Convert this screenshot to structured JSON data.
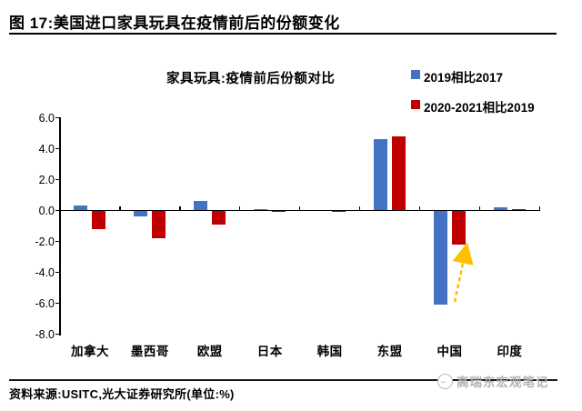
{
  "header": {
    "title": "图 17:美国进口家具玩具在疫情前后的份额变化"
  },
  "chart": {
    "title": "家具玩具:疫情前后份额对比"
  },
  "chart_data": {
    "type": "bar",
    "title": "家具玩具:疫情前后份额对比",
    "categories": [
      "加拿大",
      "墨西哥",
      "欧盟",
      "日本",
      "韩国",
      "东盟",
      "中国",
      "印度"
    ],
    "series": [
      {
        "name": "2019相比2017",
        "color": "#4472C4",
        "values": [
          0.3,
          -0.4,
          0.6,
          0.1,
          0.0,
          4.6,
          -6.1,
          0.2
        ]
      },
      {
        "name": "2020-2021相比2019",
        "color": "#C00000",
        "values": [
          -1.2,
          -1.8,
          -0.9,
          -0.1,
          -0.1,
          4.8,
          -2.2,
          0.1
        ]
      }
    ],
    "ylim": [
      -8.0,
      6.0
    ],
    "yticks": [
      "6.0",
      "4.0",
      "2.0",
      "0.0",
      "-2.0",
      "-4.0",
      "-6.0",
      "-8.0"
    ],
    "unit": "%",
    "grid": false,
    "legend_position": "top-right",
    "annotation": {
      "type": "dashed-arrow",
      "color": "#FFC000",
      "points_to": "中国 2020-2021相比2019 柱"
    }
  },
  "footer": {
    "source": "资料来源:USITC,光大证券研究所(单位:%)",
    "watermark": "高瑞东宏观笔记"
  }
}
